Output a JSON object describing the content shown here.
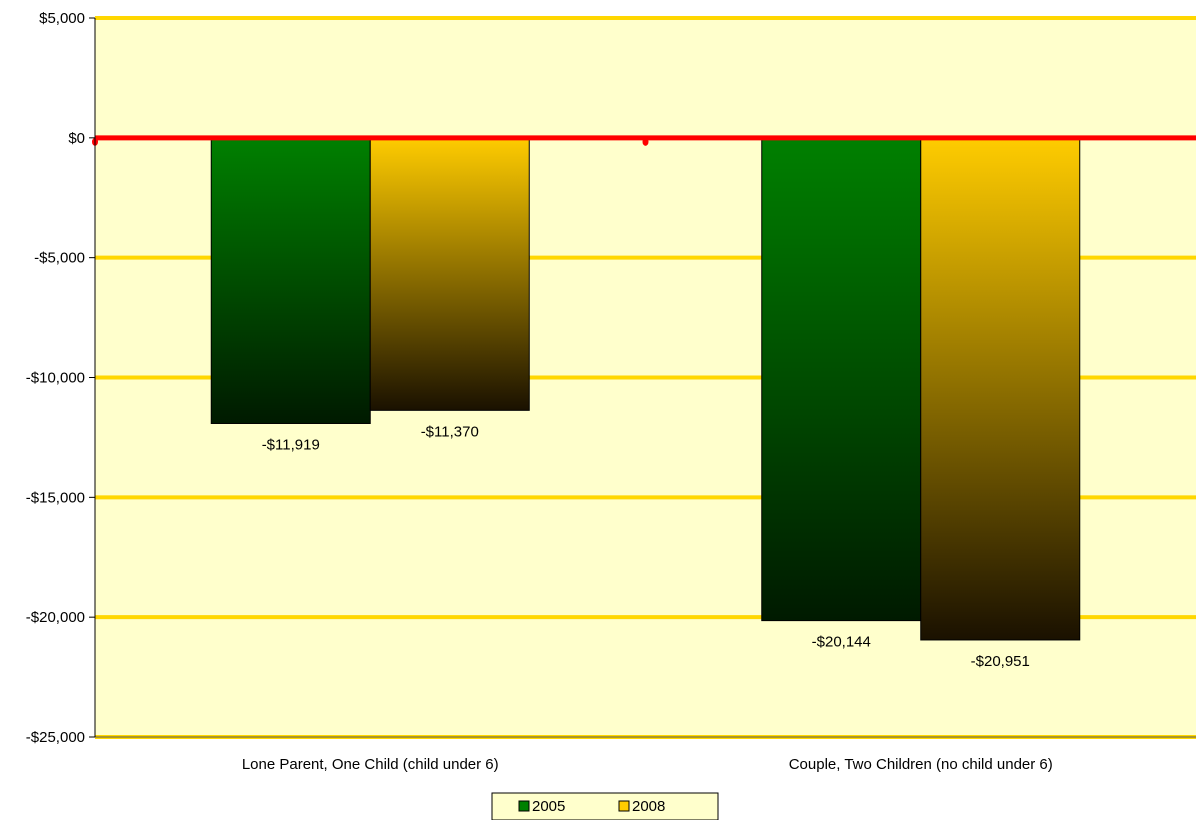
{
  "chart_data": {
    "type": "bar",
    "categories": [
      "Lone Parent, One Child (child under 6)",
      "Couple, Two Children (no child under 6)"
    ],
    "series": [
      {
        "name": "2005",
        "values": [
          -11919,
          -20144
        ],
        "labels": [
          "-$11,919",
          "-$20,144"
        ]
      },
      {
        "name": "2008",
        "values": [
          -11370,
          -20951
        ],
        "labels": [
          "-$11,370",
          "-$20,951"
        ]
      }
    ],
    "ylim": [
      -25000,
      5000
    ],
    "yticks": [
      5000,
      0,
      -5000,
      -10000,
      -15000,
      -20000,
      -25000
    ],
    "ytick_labels": [
      "$5,000",
      "$0",
      "-$5,000",
      "-$10,000",
      "-$15,000",
      "-$20,000",
      "-$25,000"
    ],
    "grid": true,
    "legend_position": "bottom"
  },
  "colors": {
    "plot_background": "#ffffcc",
    "gridline": "#ffd700",
    "zero_line": "#ff0000",
    "series_2005_top": "#008000",
    "series_2005_bottom": "#001a00",
    "series_2008_top": "#ffcc00",
    "series_2008_bottom": "#1a1100"
  }
}
